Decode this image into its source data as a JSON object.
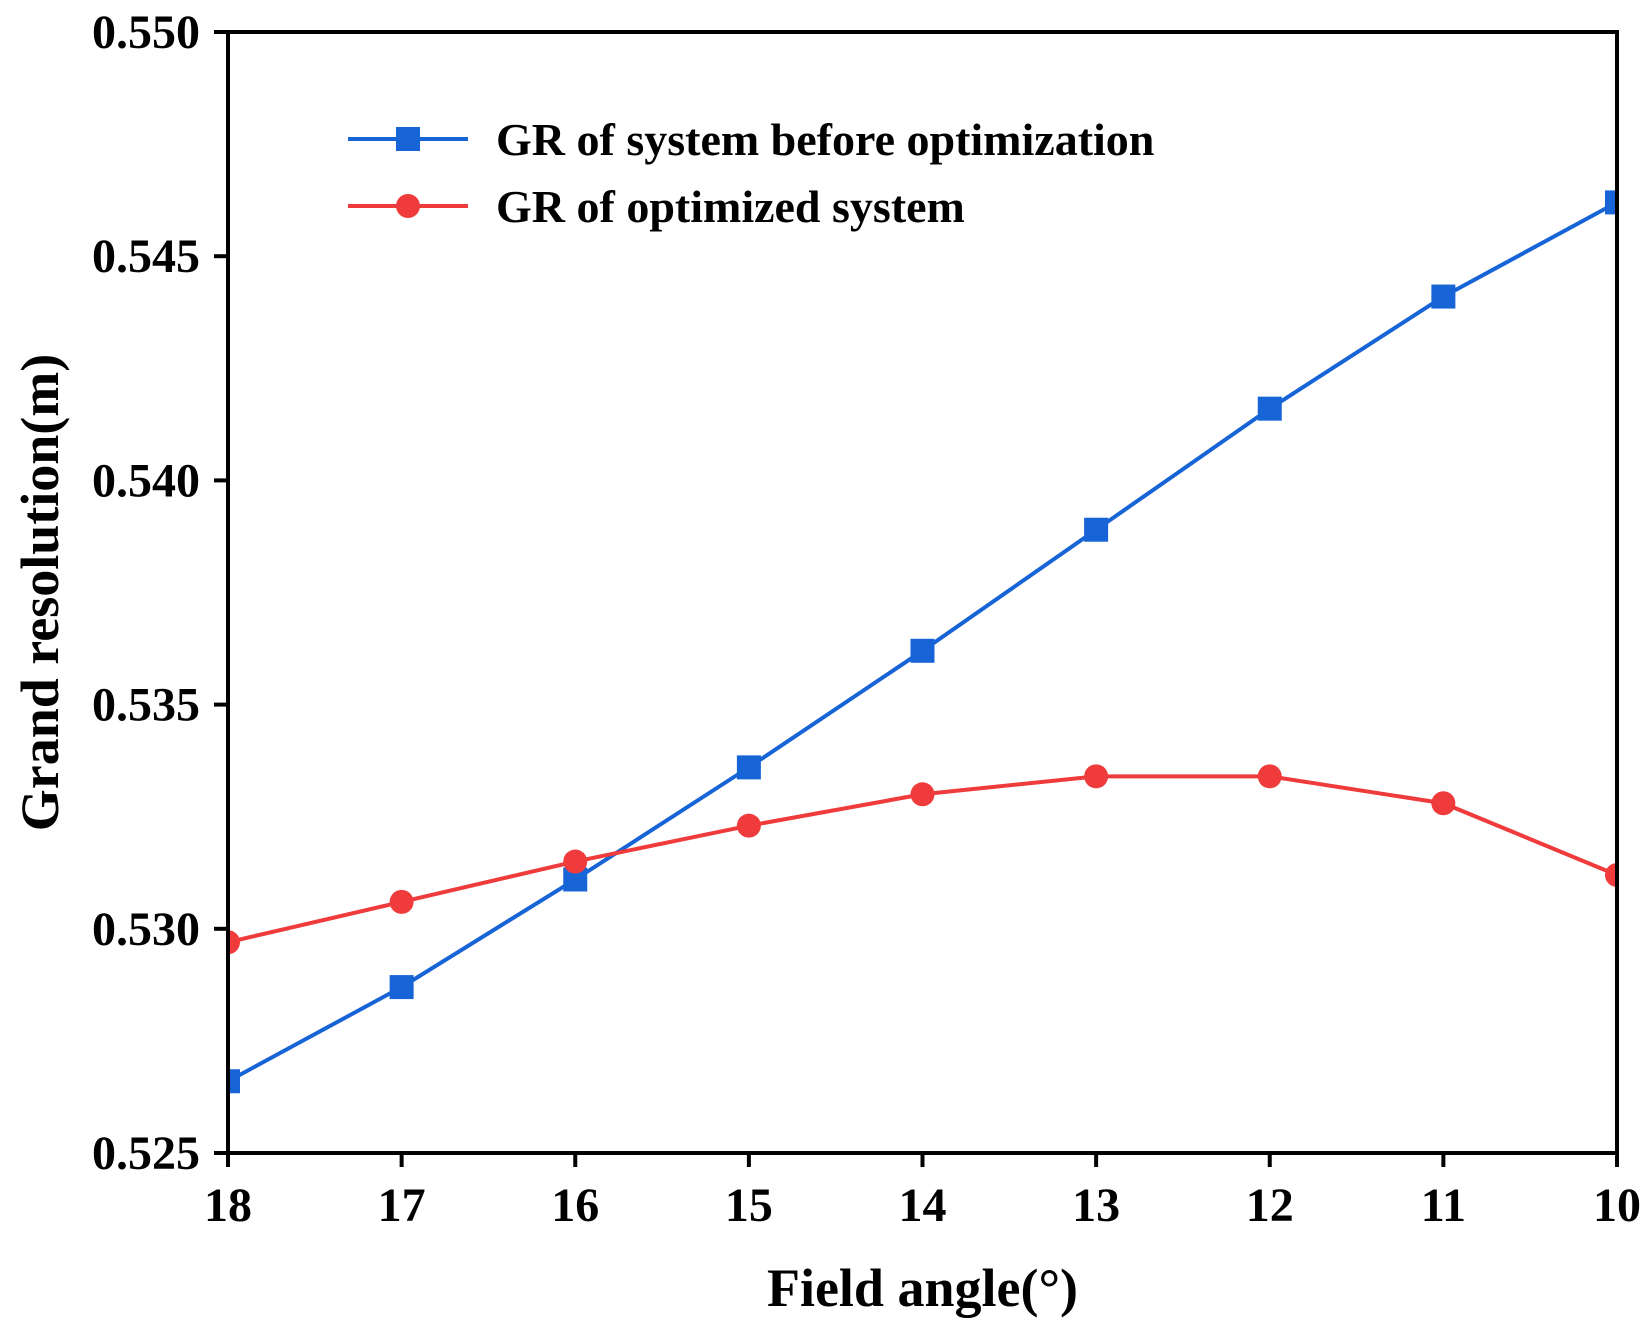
{
  "chart_data": {
    "type": "line",
    "xlabel": "Field angle(°)",
    "ylabel": "Grand resolution(m)",
    "x": [
      18,
      17,
      16,
      15,
      14,
      13,
      12,
      11,
      10
    ],
    "x_ticks": [
      "18",
      "17",
      "16",
      "15",
      "14",
      "13",
      "12",
      "11",
      "10"
    ],
    "xlim": [
      18,
      10
    ],
    "x_reversed": true,
    "ylim": [
      0.525,
      0.55
    ],
    "y_ticks": [
      "0.525",
      "0.530",
      "0.535",
      "0.540",
      "0.545",
      "0.550"
    ],
    "grid": false,
    "legend_position": "top-left",
    "series": [
      {
        "name": "GR of system before optimization",
        "marker": "square",
        "color": "#1764d7",
        "values": [
          0.5266,
          0.5287,
          0.5311,
          0.5336,
          0.5362,
          0.5389,
          0.5416,
          0.5441,
          0.5462
        ]
      },
      {
        "name": "GR of optimized system",
        "marker": "circle",
        "color": "#ef3b3b",
        "values": [
          0.5297,
          0.5306,
          0.5315,
          0.5323,
          0.533,
          0.5334,
          0.5334,
          0.5328,
          0.5312
        ]
      }
    ]
  }
}
